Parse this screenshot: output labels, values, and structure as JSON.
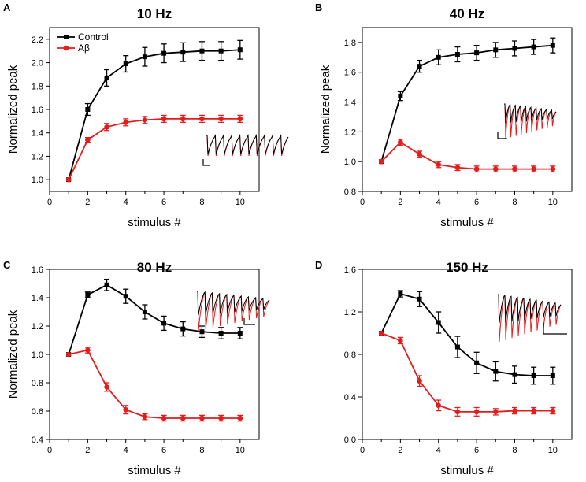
{
  "colors": {
    "control": "#000000",
    "abeta": "#e41c1c",
    "axis": "#000000"
  },
  "chart_data": [
    {
      "type": "line",
      "panel": "A",
      "title": "10 Hz",
      "xlabel": "stimulus #",
      "ylabel": "Normalized peak",
      "xlim": [
        0,
        11
      ],
      "ylim": [
        0.9,
        2.3
      ],
      "xticks": [
        0,
        2,
        4,
        6,
        8,
        10
      ],
      "yticks": [
        1.0,
        1.2,
        1.4,
        1.6,
        1.8,
        2.0,
        2.2
      ],
      "ytick_labels": [
        "1.0",
        "1.2",
        "1.4",
        "1.6",
        "1.8",
        "2.0",
        "2.2"
      ],
      "legend": {
        "placement": "top-left",
        "entries": [
          "Control",
          "Aβ"
        ]
      },
      "inset": "red and black traces of evoked current trains with scale bar",
      "x": [
        1,
        2,
        3,
        4,
        5,
        6,
        7,
        8,
        9,
        10
      ],
      "series": [
        {
          "name": "Control",
          "color": "#000000",
          "values": [
            1.0,
            1.6,
            1.87,
            1.99,
            2.05,
            2.08,
            2.09,
            2.1,
            2.1,
            2.11
          ],
          "errors": [
            0,
            0.05,
            0.07,
            0.07,
            0.08,
            0.08,
            0.08,
            0.08,
            0.08,
            0.08
          ]
        },
        {
          "name": "Aβ",
          "color": "#e41c1c",
          "values": [
            1.0,
            1.34,
            1.45,
            1.49,
            1.51,
            1.52,
            1.52,
            1.52,
            1.52,
            1.52
          ],
          "errors": [
            0,
            0.02,
            0.03,
            0.03,
            0.03,
            0.03,
            0.03,
            0.03,
            0.03,
            0.03
          ]
        }
      ]
    },
    {
      "type": "line",
      "panel": "B",
      "title": "40 Hz",
      "xlabel": "stimulus #",
      "ylabel": "Normalized peak",
      "xlim": [
        0,
        11
      ],
      "ylim": [
        0.8,
        1.9
      ],
      "xticks": [
        0,
        2,
        4,
        6,
        8,
        10
      ],
      "yticks": [
        0.8,
        1.0,
        1.2,
        1.4,
        1.6,
        1.8
      ],
      "ytick_labels": [
        "0.8",
        "1.0",
        "1.2",
        "1.4",
        "1.6",
        "1.8"
      ],
      "inset": "red and black traces of evoked current trains with scale bar",
      "x": [
        1,
        2,
        3,
        4,
        5,
        6,
        7,
        8,
        9,
        10
      ],
      "series": [
        {
          "name": "Control",
          "color": "#000000",
          "values": [
            1.0,
            1.44,
            1.64,
            1.7,
            1.72,
            1.73,
            1.75,
            1.76,
            1.77,
            1.78
          ],
          "errors": [
            0,
            0.03,
            0.04,
            0.05,
            0.05,
            0.05,
            0.05,
            0.05,
            0.05,
            0.05
          ]
        },
        {
          "name": "Aβ",
          "color": "#e41c1c",
          "values": [
            1.0,
            1.13,
            1.05,
            0.98,
            0.96,
            0.95,
            0.95,
            0.95,
            0.95,
            0.95
          ],
          "errors": [
            0,
            0.02,
            0.02,
            0.02,
            0.02,
            0.02,
            0.02,
            0.02,
            0.02,
            0.02
          ]
        }
      ]
    },
    {
      "type": "line",
      "panel": "C",
      "title": "80 Hz",
      "xlabel": "stimulus #",
      "ylabel": "Normalized peak",
      "xlim": [
        0,
        11
      ],
      "ylim": [
        0.4,
        1.6
      ],
      "xticks": [
        0,
        2,
        4,
        6,
        8,
        10
      ],
      "yticks": [
        0.4,
        0.6,
        0.8,
        1.0,
        1.2,
        1.4,
        1.6
      ],
      "ytick_labels": [
        "0.4",
        "0.6",
        "0.8",
        "1.0",
        "1.2",
        "1.4",
        "1.6"
      ],
      "inset": "red and black traces of evoked current trains with scale bar",
      "x": [
        1,
        2,
        3,
        4,
        5,
        6,
        7,
        8,
        9,
        10
      ],
      "series": [
        {
          "name": "Control",
          "color": "#000000",
          "values": [
            1.0,
            1.42,
            1.49,
            1.41,
            1.3,
            1.22,
            1.18,
            1.16,
            1.15,
            1.15
          ],
          "errors": [
            0,
            0.02,
            0.04,
            0.05,
            0.05,
            0.05,
            0.05,
            0.04,
            0.04,
            0.04
          ]
        },
        {
          "name": "Aβ",
          "color": "#e41c1c",
          "values": [
            1.0,
            1.03,
            0.77,
            0.61,
            0.56,
            0.55,
            0.55,
            0.55,
            0.55,
            0.55
          ],
          "errors": [
            0,
            0.02,
            0.03,
            0.03,
            0.02,
            0.02,
            0.02,
            0.02,
            0.02,
            0.02
          ]
        }
      ]
    },
    {
      "type": "line",
      "panel": "D",
      "title": "150 Hz",
      "xlabel": "stimulus #",
      "ylabel": "",
      "xlim": [
        0,
        11
      ],
      "ylim": [
        0.0,
        1.6
      ],
      "xticks": [
        0,
        2,
        4,
        6,
        8,
        10
      ],
      "yticks": [
        0.0,
        0.4,
        0.8,
        1.2,
        1.6
      ],
      "ytick_labels": [
        "0.0",
        "0.4",
        "0.8",
        "1.2",
        "1.6"
      ],
      "inset": "red and black traces of evoked current trains with scale bar",
      "x": [
        1,
        2,
        3,
        4,
        5,
        6,
        7,
        8,
        9,
        10
      ],
      "series": [
        {
          "name": "Control",
          "color": "#000000",
          "values": [
            1.0,
            1.37,
            1.32,
            1.1,
            0.87,
            0.72,
            0.64,
            0.61,
            0.6,
            0.6
          ],
          "errors": [
            0,
            0.03,
            0.07,
            0.1,
            0.1,
            0.1,
            0.09,
            0.08,
            0.08,
            0.08
          ]
        },
        {
          "name": "Aβ",
          "color": "#e41c1c",
          "values": [
            1.0,
            0.93,
            0.55,
            0.32,
            0.26,
            0.26,
            0.26,
            0.27,
            0.27,
            0.27
          ],
          "errors": [
            0,
            0.03,
            0.05,
            0.05,
            0.04,
            0.04,
            0.03,
            0.03,
            0.03,
            0.03
          ]
        }
      ]
    }
  ]
}
